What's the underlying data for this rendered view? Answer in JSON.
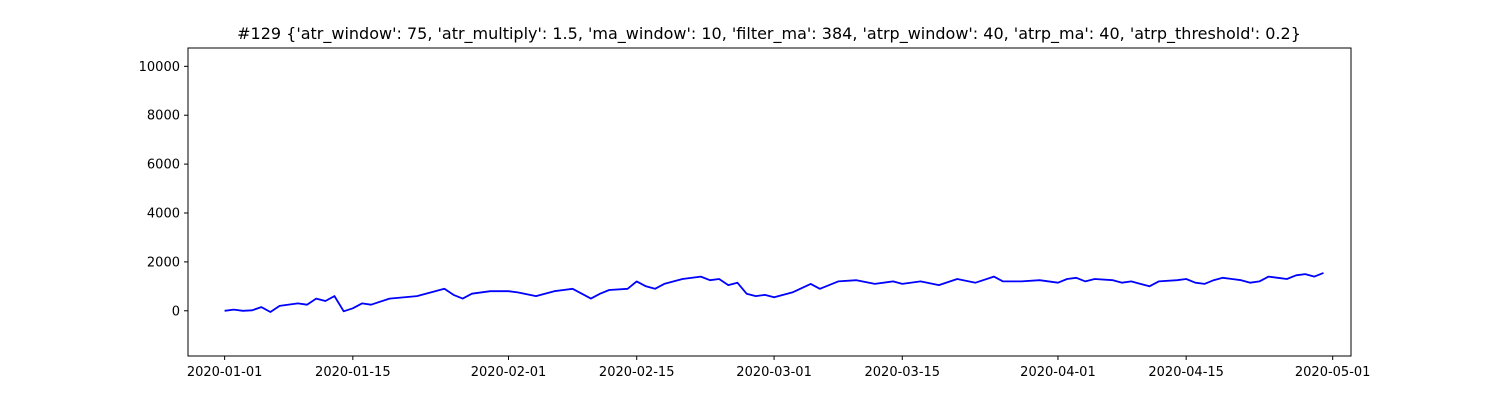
{
  "chart_data": {
    "type": "line",
    "title": "#129 {'atr_window': 75, 'atr_multiply': 1.5, 'ma_window': 10, 'filter_ma': 384, 'atrp_window': 40, 'atrp_ma': 40, 'atrp_threshold': 0.2}",
    "xlabel": "",
    "ylabel": "",
    "x_ticks": [
      "2020-01-01",
      "2020-01-15",
      "2020-02-01",
      "2020-02-15",
      "2020-03-01",
      "2020-03-15",
      "2020-04-01",
      "2020-04-15",
      "2020-05-01"
    ],
    "y_ticks": [
      0,
      2000,
      4000,
      6000,
      8000,
      10000
    ],
    "xlim": [
      "2019-12-28",
      "2020-05-03"
    ],
    "ylim": [
      -1850,
      10750
    ],
    "grid": false,
    "legend": "none",
    "series": [
      {
        "color": "#0000ff",
        "points": [
          [
            "2020-01-01",
            0
          ],
          [
            "2020-01-02",
            50
          ],
          [
            "2020-01-03",
            0
          ],
          [
            "2020-01-04",
            20
          ],
          [
            "2020-01-05",
            150
          ],
          [
            "2020-01-06",
            -50
          ],
          [
            "2020-01-07",
            200
          ],
          [
            "2020-01-09",
            300
          ],
          [
            "2020-01-10",
            250
          ],
          [
            "2020-01-11",
            500
          ],
          [
            "2020-01-12",
            400
          ],
          [
            "2020-01-13",
            600
          ],
          [
            "2020-01-14",
            -20
          ],
          [
            "2020-01-15",
            100
          ],
          [
            "2020-01-16",
            300
          ],
          [
            "2020-01-17",
            250
          ],
          [
            "2020-01-19",
            500
          ],
          [
            "2020-01-22",
            600
          ],
          [
            "2020-01-25",
            900
          ],
          [
            "2020-01-26",
            650
          ],
          [
            "2020-01-27",
            500
          ],
          [
            "2020-01-28",
            700
          ],
          [
            "2020-01-30",
            800
          ],
          [
            "2020-02-01",
            800
          ],
          [
            "2020-02-02",
            750
          ],
          [
            "2020-02-04",
            600
          ],
          [
            "2020-02-06",
            800
          ],
          [
            "2020-02-07",
            850
          ],
          [
            "2020-02-08",
            900
          ],
          [
            "2020-02-09",
            700
          ],
          [
            "2020-02-10",
            500
          ],
          [
            "2020-02-11",
            700
          ],
          [
            "2020-02-12",
            850
          ],
          [
            "2020-02-14",
            900
          ],
          [
            "2020-02-15",
            1200
          ],
          [
            "2020-02-16",
            1000
          ],
          [
            "2020-02-17",
            900
          ],
          [
            "2020-02-18",
            1100
          ],
          [
            "2020-02-20",
            1300
          ],
          [
            "2020-02-22",
            1400
          ],
          [
            "2020-02-23",
            1250
          ],
          [
            "2020-02-24",
            1300
          ],
          [
            "2020-02-25",
            1050
          ],
          [
            "2020-02-26",
            1150
          ],
          [
            "2020-02-27",
            700
          ],
          [
            "2020-02-28",
            600
          ],
          [
            "2020-02-29",
            650
          ],
          [
            "2020-03-01",
            550
          ],
          [
            "2020-03-03",
            750
          ],
          [
            "2020-03-05",
            1100
          ],
          [
            "2020-03-06",
            900
          ],
          [
            "2020-03-08",
            1200
          ],
          [
            "2020-03-10",
            1250
          ],
          [
            "2020-03-12",
            1100
          ],
          [
            "2020-03-14",
            1200
          ],
          [
            "2020-03-15",
            1100
          ],
          [
            "2020-03-17",
            1200
          ],
          [
            "2020-03-19",
            1050
          ],
          [
            "2020-03-21",
            1300
          ],
          [
            "2020-03-23",
            1150
          ],
          [
            "2020-03-25",
            1400
          ],
          [
            "2020-03-26",
            1200
          ],
          [
            "2020-03-28",
            1200
          ],
          [
            "2020-03-30",
            1250
          ],
          [
            "2020-04-01",
            1150
          ],
          [
            "2020-04-02",
            1300
          ],
          [
            "2020-04-03",
            1350
          ],
          [
            "2020-04-04",
            1200
          ],
          [
            "2020-04-05",
            1300
          ],
          [
            "2020-04-07",
            1250
          ],
          [
            "2020-04-08",
            1150
          ],
          [
            "2020-04-09",
            1200
          ],
          [
            "2020-04-10",
            1100
          ],
          [
            "2020-04-11",
            1000
          ],
          [
            "2020-04-12",
            1200
          ],
          [
            "2020-04-14",
            1250
          ],
          [
            "2020-04-15",
            1300
          ],
          [
            "2020-04-16",
            1150
          ],
          [
            "2020-04-17",
            1100
          ],
          [
            "2020-04-18",
            1250
          ],
          [
            "2020-04-19",
            1350
          ],
          [
            "2020-04-20",
            1300
          ],
          [
            "2020-04-21",
            1250
          ],
          [
            "2020-04-22",
            1150
          ],
          [
            "2020-04-23",
            1200
          ],
          [
            "2020-04-24",
            1400
          ],
          [
            "2020-04-25",
            1350
          ],
          [
            "2020-04-26",
            1300
          ],
          [
            "2020-04-27",
            1450
          ],
          [
            "2020-04-28",
            1500
          ],
          [
            "2020-04-29",
            1400
          ],
          [
            "2020-04-30",
            1550
          ]
        ]
      }
    ]
  }
}
